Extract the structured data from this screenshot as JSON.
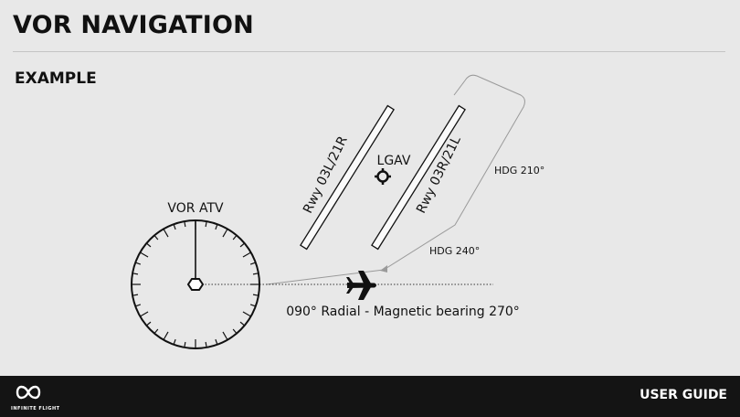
{
  "header": {
    "title": "VOR NAVIGATION",
    "section": "EXAMPLE"
  },
  "diagram": {
    "vor_label": "VOR ATV",
    "airport_label": "LGAV",
    "runway_left": "Rwy 03L/21R",
    "runway_right": "Rwy 03R/21L",
    "heading_1": "HDG 210°",
    "heading_2": "HDG 240°",
    "radial_caption": "090° Radial - Magnetic bearing 270°"
  },
  "footer": {
    "brand_name": "INFINITE FLIGHT",
    "guide_label": "USER GUIDE"
  },
  "colors": {
    "background": "#e8e8e8",
    "footer": "#141414",
    "ink": "#111111"
  }
}
